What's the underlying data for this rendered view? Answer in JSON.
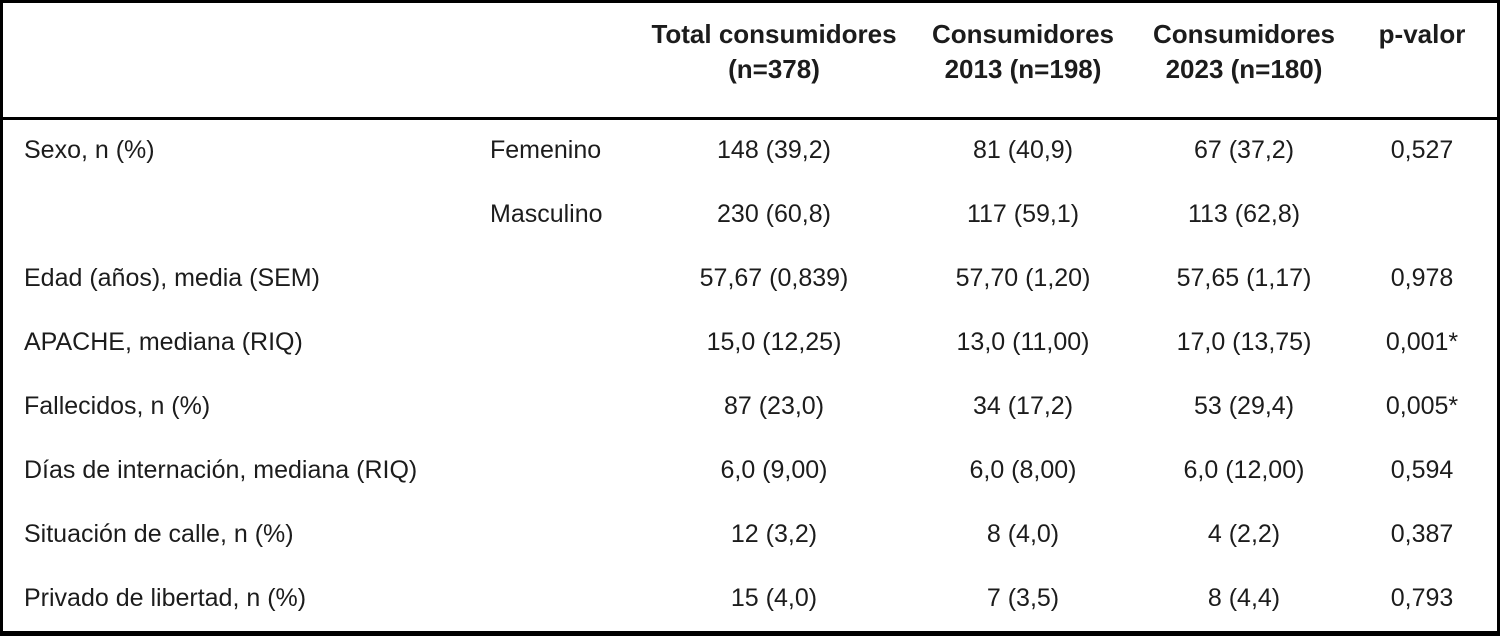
{
  "colors": {
    "background": "#ffffff",
    "border": "#000000",
    "text": "#1c1c1c"
  },
  "table": {
    "headers": [
      {
        "line1": "",
        "line2": ""
      },
      {
        "line1": "",
        "line2": ""
      },
      {
        "line1": "Total consumidores",
        "line2": "(n=378)"
      },
      {
        "line1": "Consumidores",
        "line2": "2013 (n=198)"
      },
      {
        "line1": "Consumidores",
        "line2": "2023 (n=180)"
      },
      {
        "line1": "p-valor",
        "line2": ""
      }
    ],
    "rows": [
      [
        "Sexo, n (%)",
        "Femenino",
        "148 (39,2)",
        "81 (40,9)",
        "67 (37,2)",
        "0,527"
      ],
      [
        "",
        "Masculino",
        "230 (60,8)",
        "117 (59,1)",
        "113 (62,8)",
        ""
      ],
      [
        "Edad (años), media (SEM)",
        "",
        "57,67 (0,839)",
        "57,70 (1,20)",
        "57,65 (1,17)",
        "0,978"
      ],
      [
        "APACHE, mediana (RIQ)",
        "",
        "15,0 (12,25)",
        "13,0 (11,00)",
        "17,0 (13,75)",
        "0,001*"
      ],
      [
        "Fallecidos, n (%)",
        "",
        "87 (23,0)",
        "34 (17,2)",
        "53 (29,4)",
        "0,005*"
      ],
      [
        "Días de internación, mediana (RIQ)",
        "",
        "6,0 (9,00)",
        "6,0 (8,00)",
        "6,0 (12,00)",
        "0,594"
      ],
      [
        "Situación de calle, n (%)",
        "",
        "12 (3,2)",
        "8 (4,0)",
        "4 (2,2)",
        "0,387"
      ],
      [
        "Privado de libertad, n (%)",
        "",
        "15 (4,0)",
        "7 (3,5)",
        "8 (4,4)",
        "0,793"
      ]
    ]
  }
}
